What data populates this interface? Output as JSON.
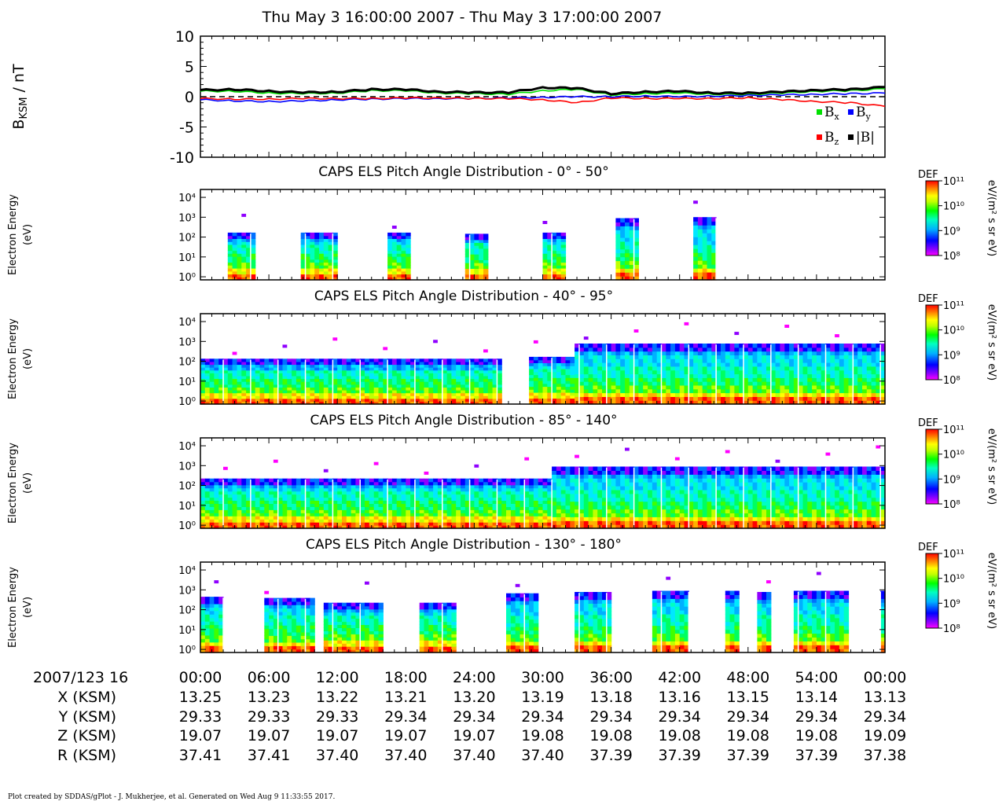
{
  "title": "Thu May 3 16:00:00 2007 - Thu May 3 17:00:00 2007",
  "footer": "Plot created by SDDAS/gPlot - J. Mukherjee, et al.  Generated on Wed Aug 9 11:33:55 2017.",
  "colors": {
    "bx": "#00e000",
    "by": "#0000ff",
    "bz": "#ff0000",
    "bmag": "#000000"
  },
  "chart_data": [
    {
      "type": "line",
      "ylabel": {
        "base": "B",
        "sub": "KSM",
        "rest": " / nT"
      },
      "ylim": [
        -10,
        10
      ],
      "yticks": [
        "10",
        "5",
        "0",
        "-5",
        "-10"
      ],
      "x_unit": "minutes after 16:00",
      "legend": [
        {
          "key": "bx",
          "base": "B",
          "sub": "x",
          "color": "#00e000"
        },
        {
          "key": "by",
          "base": "B",
          "sub": "y",
          "color": "#0000ff"
        },
        {
          "key": "bz",
          "base": "B",
          "sub": "z",
          "color": "#ff0000"
        },
        {
          "key": "bmag",
          "base": "|B|",
          "sub": "",
          "color": "#000000"
        }
      ],
      "x": [
        0,
        3,
        6,
        9,
        12,
        15,
        18,
        21,
        24,
        27,
        30,
        33,
        36,
        39,
        42,
        45,
        48,
        51,
        54,
        57,
        60
      ],
      "series": [
        {
          "key": "bx",
          "values": [
            0.9,
            0.9,
            0.6,
            0.5,
            0.6,
            1.0,
            1.0,
            0.6,
            0.5,
            0.4,
            1.0,
            1.2,
            0.3,
            0.5,
            0.6,
            0.4,
            0.4,
            0.6,
            0.9,
            1.0,
            1.3
          ]
        },
        {
          "key": "by",
          "values": [
            -0.5,
            -0.7,
            -0.8,
            -0.7,
            -0.5,
            -0.4,
            -0.3,
            -0.3,
            -0.3,
            -0.2,
            -0.1,
            0.0,
            0.0,
            0.1,
            0.0,
            0.1,
            0.2,
            0.3,
            0.4,
            0.5,
            0.6
          ]
        },
        {
          "key": "bz",
          "values": [
            -0.3,
            -0.4,
            -0.4,
            -0.3,
            -0.3,
            -0.3,
            -0.2,
            -0.2,
            -0.3,
            -0.3,
            -0.5,
            -1.0,
            -0.2,
            -0.3,
            -0.3,
            -0.3,
            -0.2,
            -0.5,
            -0.8,
            -1.0,
            -1.6
          ]
        },
        {
          "key": "bmag",
          "values": [
            1.1,
            1.2,
            0.9,
            0.7,
            0.8,
            1.2,
            1.2,
            0.8,
            0.7,
            0.7,
            1.5,
            1.4,
            0.5,
            0.8,
            0.9,
            0.6,
            0.6,
            0.8,
            1.1,
            1.2,
            1.6
          ]
        }
      ],
      "reference_line": 0
    },
    {
      "type": "heatmap",
      "title": "CAPS ELS Pitch Angle Distribution - 0° - 50°",
      "ylabel": [
        "Electron Energy",
        "(eV)"
      ],
      "y_scale": "log",
      "ylim_eV": [
        0.7,
        25000
      ],
      "yticks": [
        "10⁴",
        "10³",
        "10²",
        "10¹",
        "10⁰"
      ],
      "data_intervals_min": [
        [
          2.5,
          4.8
        ],
        [
          9.0,
          11.8
        ],
        [
          16.5,
          18.3
        ],
        [
          23.3,
          25.0
        ],
        [
          30.2,
          31.8
        ],
        [
          36.5,
          38.3
        ],
        [
          43.3,
          45.2
        ]
      ],
      "upper_cutoff_eV": [
        150,
        150,
        150,
        130,
        150,
        800,
        900
      ],
      "colorbar": {
        "label": "DEF",
        "unit": "eV/(m² s sr eV)",
        "ticks": [
          "10¹¹",
          "10¹⁰",
          "10⁹",
          "10⁸"
        ]
      }
    },
    {
      "type": "heatmap",
      "title": "CAPS ELS Pitch Angle Distribution - 40° - 95°",
      "ylabel": [
        "Electron Energy",
        "(eV)"
      ],
      "y_scale": "log",
      "ylim_eV": [
        0.7,
        25000
      ],
      "yticks": [
        "10⁴",
        "10³",
        "10²",
        "10¹",
        "10⁰"
      ],
      "data_intervals_min": [
        [
          0,
          26.4
        ],
        [
          29.0,
          60
        ]
      ],
      "cutoff_profile_eV": {
        "0-26": 120,
        "29-32": 150,
        "32-60": 700
      },
      "colorbar": {
        "label": "DEF",
        "unit": "eV/(m² s sr eV)",
        "ticks": [
          "10¹¹",
          "10¹⁰",
          "10⁹",
          "10⁸"
        ]
      }
    },
    {
      "type": "heatmap",
      "title": "CAPS ELS Pitch Angle Distribution - 85° - 140°",
      "ylabel": [
        "Electron Energy",
        "(eV)"
      ],
      "y_scale": "log",
      "ylim_eV": [
        0.7,
        25000
      ],
      "yticks": [
        "10⁴",
        "10³",
        "10²",
        "10¹",
        "10⁰"
      ],
      "data_intervals_min": [
        [
          0,
          30.2
        ],
        [
          30.6,
          60
        ]
      ],
      "cutoff_profile_eV": {
        "0-30": 200,
        "31-60": 800
      },
      "colorbar": {
        "label": "DEF",
        "unit": "eV/(m² s sr eV)",
        "ticks": [
          "10¹¹",
          "10¹⁰",
          "10⁹",
          "10⁸"
        ]
      }
    },
    {
      "type": "heatmap",
      "title": "CAPS ELS Pitch Angle Distribution - 130° - 180°",
      "ylabel": [
        "Electron Energy",
        "(eV)"
      ],
      "y_scale": "log",
      "ylim_eV": [
        0.7,
        25000
      ],
      "yticks": [
        "10⁴",
        "10³",
        "10²",
        "10¹",
        "10⁰"
      ],
      "data_intervals_min": [
        [
          0,
          2.0
        ],
        [
          5.8,
          9.8
        ],
        [
          11.0,
          15.8
        ],
        [
          19.4,
          22.2
        ],
        [
          26.3,
          26.5
        ],
        [
          26.8,
          29.5
        ],
        [
          33.0,
          36.0
        ],
        [
          39.5,
          41.0
        ],
        [
          41.3,
          42.8
        ],
        [
          46.2,
          47.2
        ],
        [
          48.8,
          49.8
        ],
        [
          52.2,
          54.2
        ],
        [
          54.4,
          56.7
        ],
        [
          59.5,
          60
        ]
      ],
      "upper_cutoff_eV": [
        400,
        350,
        200,
        200,
        600,
        600,
        700,
        800,
        800,
        800,
        700,
        800,
        800,
        800
      ],
      "colorbar": {
        "label": "DEF",
        "unit": "eV/(m² s sr eV)",
        "ticks": [
          "10¹¹",
          "10¹⁰",
          "10⁹",
          "10⁸"
        ]
      }
    }
  ],
  "table": {
    "row_labels": [
      "2007/123 16",
      "X (KSM)",
      "Y (KSM)",
      "Z (KSM)",
      "R (KSM)"
    ],
    "times": [
      "00:00",
      "06:00",
      "12:00",
      "18:00",
      "24:00",
      "30:00",
      "36:00",
      "42:00",
      "48:00",
      "54:00",
      "00:00"
    ],
    "x": [
      "13.25",
      "13.23",
      "13.22",
      "13.21",
      "13.20",
      "13.19",
      "13.18",
      "13.16",
      "13.15",
      "13.14",
      "13.13"
    ],
    "y": [
      "29.33",
      "29.33",
      "29.33",
      "29.34",
      "29.34",
      "29.34",
      "29.34",
      "29.34",
      "29.34",
      "29.34",
      "29.34"
    ],
    "z": [
      "19.07",
      "19.07",
      "19.07",
      "19.07",
      "19.07",
      "19.08",
      "19.08",
      "19.08",
      "19.08",
      "19.08",
      "19.09"
    ],
    "r": [
      "37.41",
      "37.41",
      "37.40",
      "37.40",
      "37.40",
      "37.40",
      "37.39",
      "37.39",
      "37.39",
      "37.39",
      "37.38"
    ]
  }
}
